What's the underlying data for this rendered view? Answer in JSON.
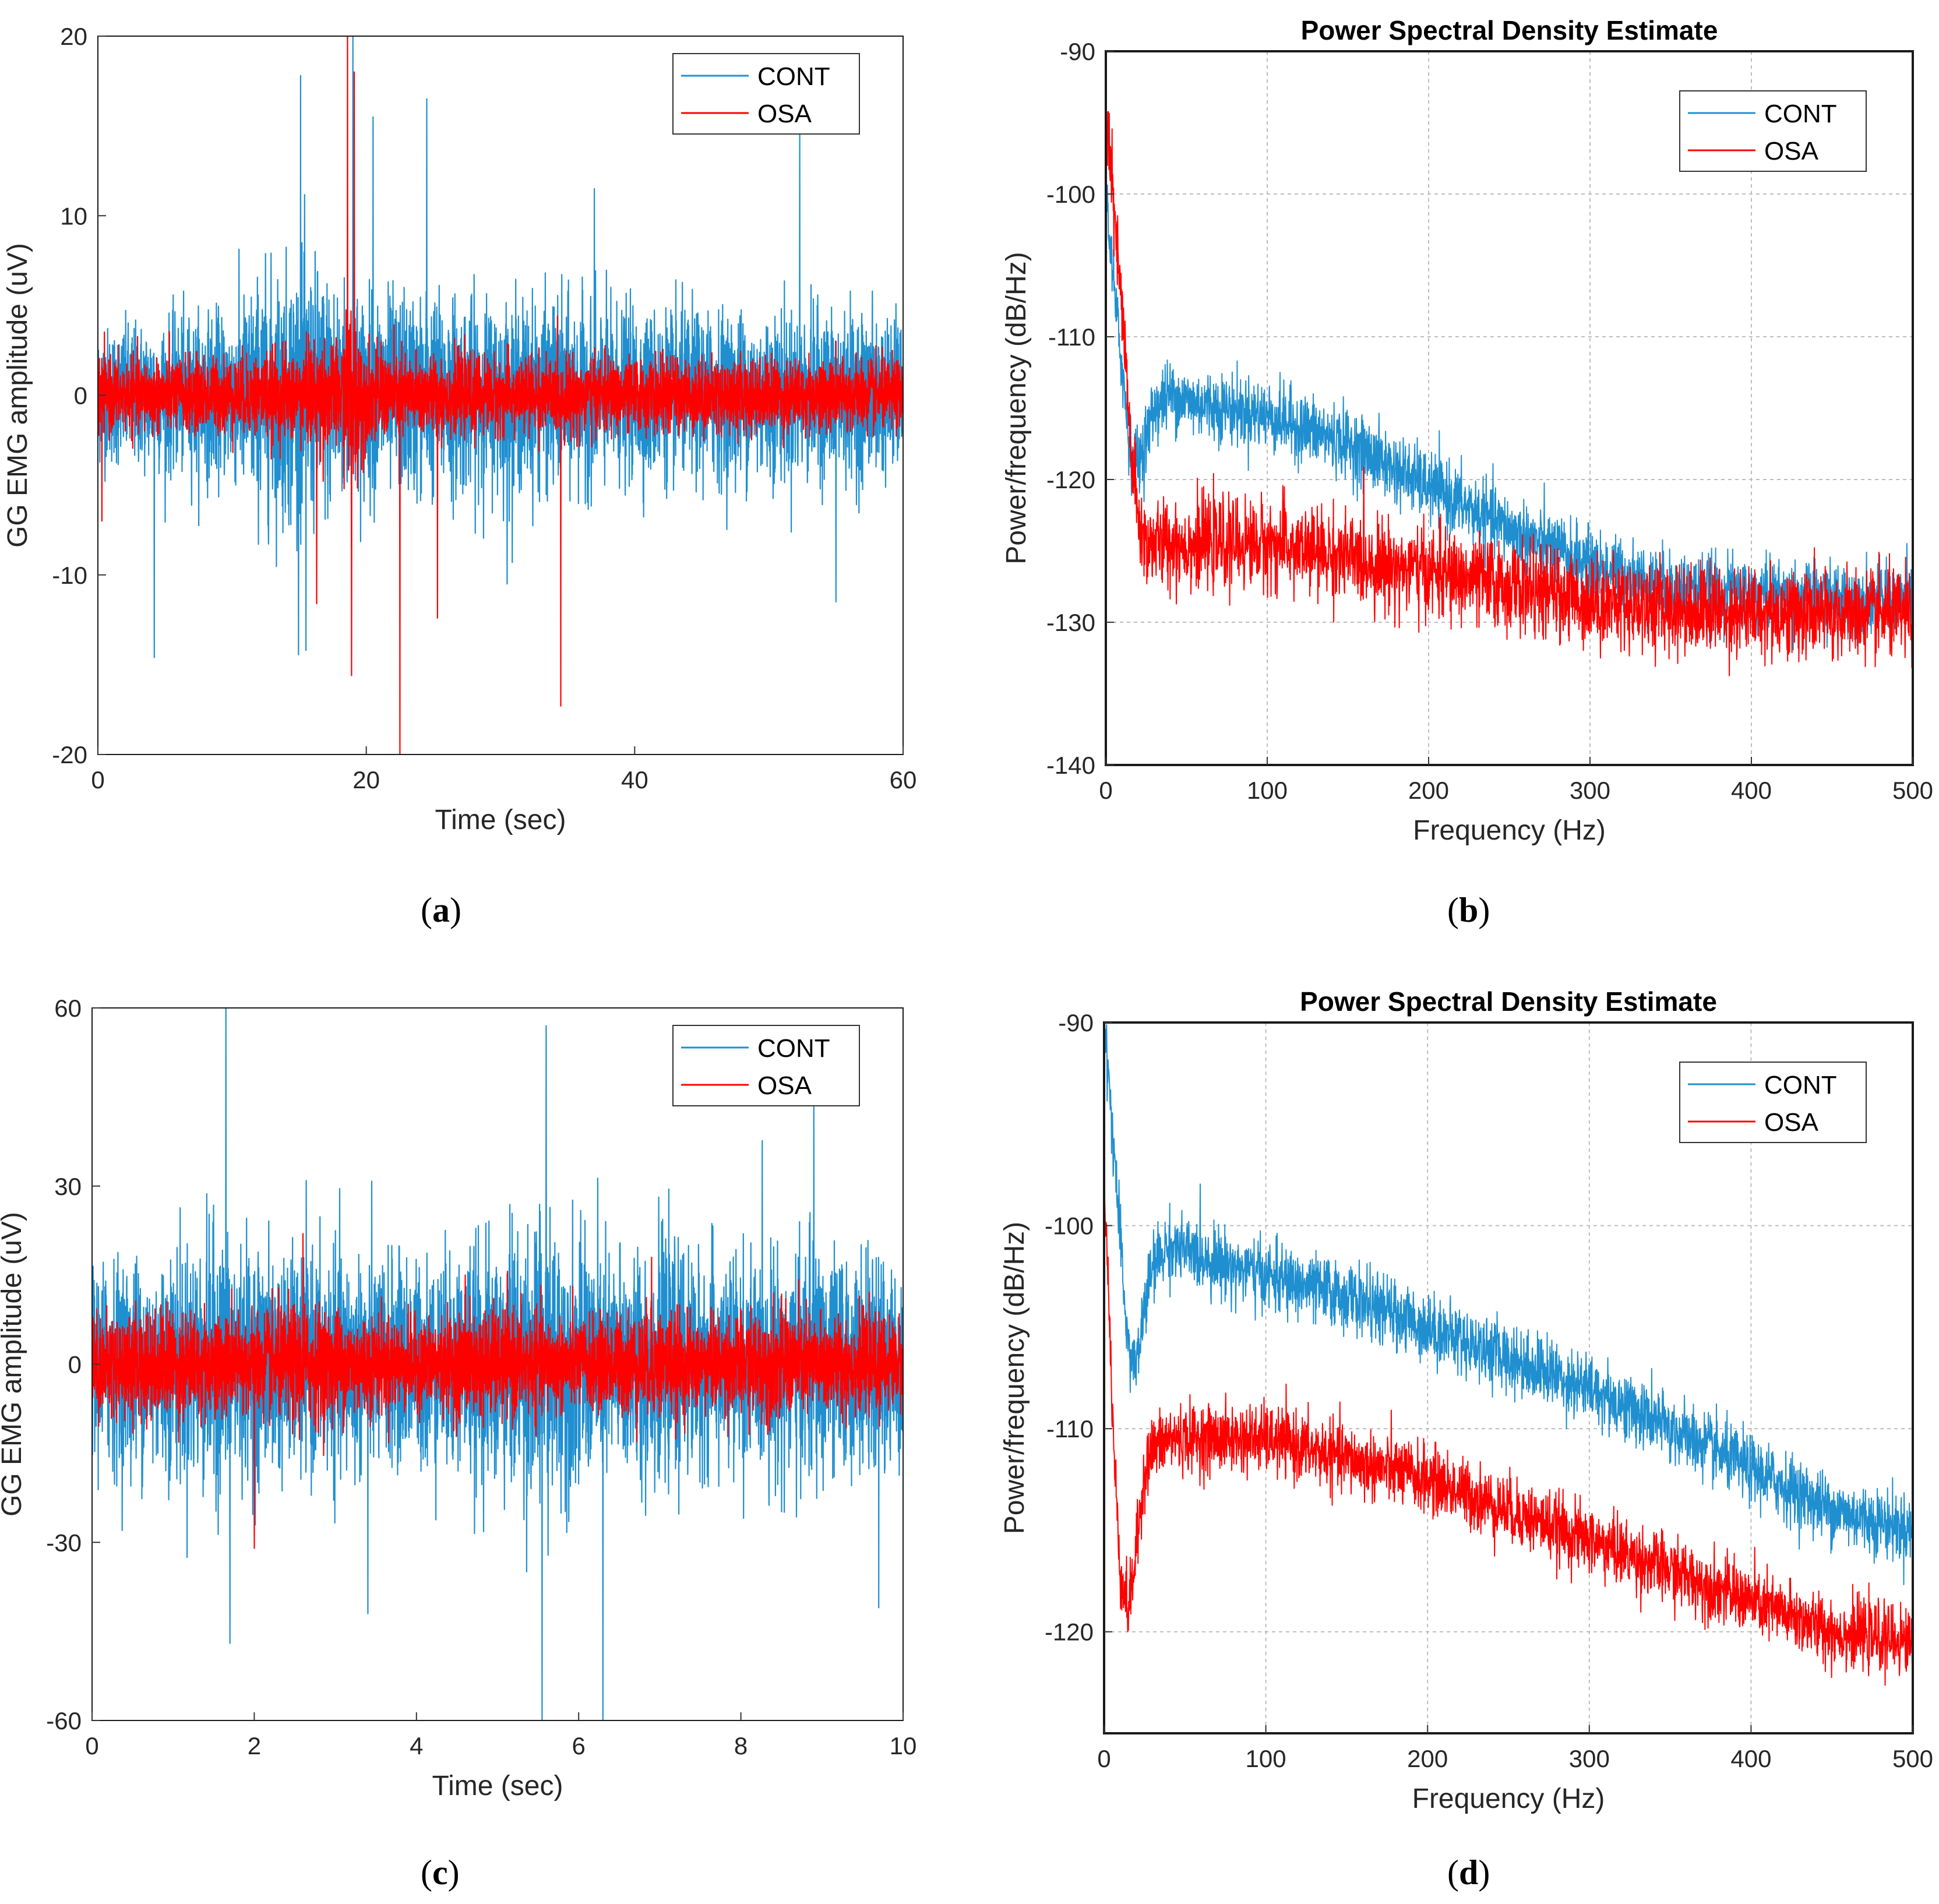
{
  "charts": [
    {
      "type": "line",
      "panel": "a",
      "title": "",
      "xlabel": "Time (sec)",
      "ylabel": "GG EMG amplitude (uV)",
      "xlim": [
        0,
        60
      ],
      "ylim": [
        -20,
        20
      ],
      "xticks": [
        0,
        20,
        40,
        60
      ],
      "yticks": [
        -20,
        -10,
        0,
        10,
        20
      ],
      "grid": false,
      "legend_position": "top-right",
      "series": [
        {
          "name": "CONT",
          "color": "#1f8fd0",
          "envelope_x": [
            0,
            5,
            10,
            12,
            15,
            18,
            20,
            25,
            30,
            35,
            40,
            45,
            50,
            55,
            60
          ],
          "envelope_y": [
            4,
            4.5,
            5,
            7,
            8,
            7,
            6,
            6,
            5.5,
            5.5,
            5,
            5,
            5,
            5,
            4.5
          ],
          "spikes": [
            [
              4.2,
              -14.6
            ],
            [
              15.1,
              17.8
            ],
            [
              15.5,
              -14.2
            ],
            [
              19.0,
              20
            ],
            [
              20.5,
              15.5
            ],
            [
              24.5,
              16.5
            ],
            [
              30.5,
              -10.5
            ],
            [
              37.0,
              11.5
            ],
            [
              52.3,
              14.5
            ],
            [
              55.0,
              -11.5
            ]
          ]
        },
        {
          "name": "OSA",
          "color": "#ff0000",
          "envelope_x": [
            0,
            5,
            10,
            15,
            16.5,
            18,
            19,
            20,
            25,
            30,
            35,
            40,
            45,
            50,
            55,
            60
          ],
          "envelope_y": [
            2.2,
            2.2,
            2.3,
            2.8,
            3.5,
            3,
            6,
            2.8,
            2.4,
            2.3,
            2.3,
            2.2,
            2.2,
            2.2,
            2.2,
            2.1
          ],
          "spikes": [
            [
              18.6,
              20
            ],
            [
              18.9,
              -15.6
            ],
            [
              19.1,
              18
            ],
            [
              22.5,
              -20
            ],
            [
              25.3,
              -12.4
            ],
            [
              34.5,
              -17.3
            ],
            [
              16.3,
              -11.6
            ],
            [
              0.3,
              -7
            ]
          ]
        }
      ]
    },
    {
      "type": "line",
      "panel": "b",
      "title": "Power Spectral Density Estimate",
      "xlabel": "Frequency (Hz)",
      "ylabel": "Power/frequency (dB/Hz)",
      "xlim": [
        0,
        500
      ],
      "ylim": [
        -140,
        -90
      ],
      "xticks": [
        0,
        100,
        200,
        300,
        400,
        500
      ],
      "yticks": [
        -140,
        -130,
        -120,
        -110,
        -100,
        -90
      ],
      "grid": true,
      "legend_position": "top-right",
      "series": [
        {
          "name": "CONT",
          "color": "#1f8fd0",
          "x": [
            0,
            3,
            6,
            10,
            15,
            20,
            25,
            30,
            40,
            50,
            75,
            100,
            150,
            200,
            250,
            300,
            350,
            400,
            450,
            500
          ],
          "y": [
            -99,
            -104,
            -108,
            -112,
            -118,
            -119,
            -117,
            -115,
            -114,
            -114.5,
            -115,
            -115.5,
            -117.5,
            -120.5,
            -123.5,
            -126,
            -127.5,
            -128,
            -128.3,
            -128.5
          ],
          "noise": 2.2
        },
        {
          "name": "OSA",
          "color": "#ff0000",
          "x": [
            0,
            3,
            6,
            10,
            15,
            20,
            25,
            30,
            40,
            50,
            75,
            100,
            150,
            200,
            250,
            300,
            350,
            400,
            450,
            500
          ],
          "y": [
            -94,
            -98,
            -103,
            -108,
            -117,
            -123,
            -124.5,
            -124.5,
            -124.5,
            -124.5,
            -124.5,
            -124.5,
            -125.5,
            -126.5,
            -127.5,
            -128.5,
            -129,
            -129.3,
            -129.5,
            -129.5
          ],
          "noise": 2.8
        }
      ]
    },
    {
      "type": "line",
      "panel": "c",
      "title": "",
      "xlabel": "Time (sec)",
      "ylabel": "GG EMG amplitude (uV)",
      "xlim": [
        0,
        10
      ],
      "ylim": [
        -60,
        60
      ],
      "xticks": [
        0,
        2,
        4,
        6,
        8,
        10
      ],
      "yticks": [
        -60,
        -30,
        0,
        30,
        60
      ],
      "grid": false,
      "legend_position": "top-right",
      "series": [
        {
          "name": "CONT",
          "color": "#1f8fd0",
          "envelope_x": [
            0,
            1,
            1.5,
            2,
            2.5,
            3,
            3.5,
            4,
            4.5,
            5,
            5.5,
            6,
            6.5,
            7,
            7.5,
            8,
            8.5,
            9,
            9.5,
            10
          ],
          "envelope_y": [
            18,
            20,
            24,
            20,
            19,
            20,
            19,
            18,
            20,
            22,
            26,
            22,
            20,
            21,
            19,
            19,
            20,
            21,
            18,
            18
          ],
          "spikes": [
            [
              1.65,
              60
            ],
            [
              1.7,
              -47
            ],
            [
              5.55,
              -60
            ],
            [
              5.6,
              57
            ],
            [
              6.3,
              -60
            ],
            [
              8.9,
              45
            ],
            [
              3.4,
              -42
            ],
            [
              9.7,
              -41
            ]
          ]
        },
        {
          "name": "OSA",
          "color": "#ff0000",
          "envelope_x": [
            0,
            1,
            2,
            2.5,
            3,
            4,
            5,
            5.5,
            6,
            7,
            7.5,
            8,
            8.5,
            9,
            10
          ],
          "envelope_y": [
            9,
            10,
            9,
            11,
            10,
            8,
            10,
            9,
            8,
            10,
            8,
            9,
            10,
            9,
            8
          ],
          "spikes": [
            [
              2.0,
              -31
            ],
            [
              2.6,
              22
            ],
            [
              4.6,
              15
            ],
            [
              6.9,
              18
            ]
          ]
        }
      ]
    },
    {
      "type": "line",
      "panel": "d",
      "title": "Power Spectral Density Estimate",
      "xlabel": "Frequency (Hz)",
      "ylabel": "Power/frequency (dB/Hz)",
      "xlim": [
        0,
        500
      ],
      "ylim": [
        -125,
        -90
      ],
      "xticks": [
        0,
        100,
        200,
        300,
        400,
        500
      ],
      "yticks": [
        -120,
        -110,
        -100,
        -90
      ],
      "grid": true,
      "legend_position": "top-right",
      "series": [
        {
          "name": "CONT",
          "color": "#1f8fd0",
          "x": [
            0,
            3,
            6,
            10,
            15,
            20,
            25,
            30,
            40,
            60,
            80,
            100,
            150,
            200,
            250,
            300,
            350,
            400,
            450,
            500
          ],
          "y": [
            -90,
            -93,
            -96,
            -101,
            -106,
            -107,
            -104,
            -102,
            -101,
            -101.5,
            -102,
            -102.5,
            -103.5,
            -105,
            -106.5,
            -108,
            -110,
            -112,
            -114,
            -115
          ],
          "noise": 1.5
        },
        {
          "name": "OSA",
          "color": "#ff0000",
          "x": [
            0,
            3,
            6,
            10,
            15,
            20,
            25,
            30,
            40,
            60,
            80,
            100,
            150,
            200,
            250,
            300,
            350,
            400,
            450,
            500
          ],
          "y": [
            -97,
            -104,
            -111,
            -117,
            -119,
            -116,
            -112,
            -111,
            -110.5,
            -110.5,
            -110.5,
            -110.5,
            -111.5,
            -112.5,
            -114,
            -115.5,
            -117,
            -118.5,
            -120,
            -120.5
          ],
          "noise": 1.5
        }
      ]
    }
  ],
  "captions": [
    "a",
    "b",
    "c",
    "d"
  ]
}
